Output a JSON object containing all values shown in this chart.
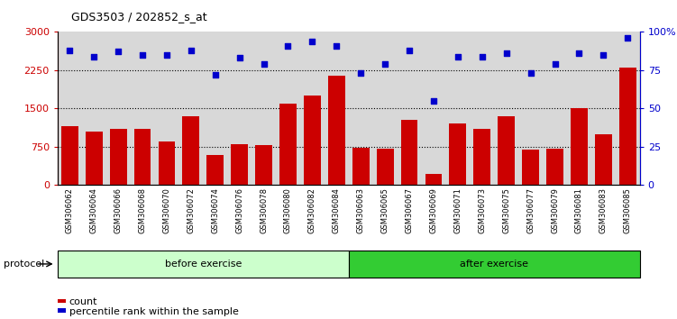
{
  "title": "GDS3503 / 202852_s_at",
  "samples": [
    "GSM306062",
    "GSM306064",
    "GSM306066",
    "GSM306068",
    "GSM306070",
    "GSM306072",
    "GSM306074",
    "GSM306076",
    "GSM306078",
    "GSM306080",
    "GSM306082",
    "GSM306084",
    "GSM306063",
    "GSM306065",
    "GSM306067",
    "GSM306069",
    "GSM306071",
    "GSM306073",
    "GSM306075",
    "GSM306077",
    "GSM306079",
    "GSM306081",
    "GSM306083",
    "GSM306085"
  ],
  "counts": [
    1150,
    1050,
    1100,
    1100,
    850,
    1350,
    590,
    800,
    780,
    1600,
    1750,
    2150,
    730,
    720,
    1280,
    220,
    1200,
    1100,
    1350,
    700,
    720,
    1500,
    1000,
    2300
  ],
  "percentiles": [
    88,
    84,
    87,
    85,
    85,
    88,
    72,
    83,
    79,
    91,
    94,
    91,
    73,
    79,
    88,
    55,
    84,
    84,
    86,
    73,
    79,
    86,
    85,
    96
  ],
  "before_count": 12,
  "after_count": 12,
  "bar_color": "#cc0000",
  "dot_color": "#0000cc",
  "before_color": "#ccffcc",
  "after_color": "#33cc33",
  "before_label": "before exercise",
  "after_label": "after exercise",
  "protocol_label": "protocol",
  "legend_count": "count",
  "legend_percentile": "percentile rank within the sample",
  "ylim_left": [
    0,
    3000
  ],
  "ylim_right": [
    0,
    100
  ],
  "yticks_left": [
    0,
    750,
    1500,
    2250,
    3000
  ],
  "yticks_right": [
    0,
    25,
    50,
    75,
    100
  ],
  "ytick_labels_right": [
    "0",
    "25",
    "50",
    "75",
    "100%"
  ],
  "grid_values": [
    750,
    1500,
    2250
  ],
  "plot_bg_color": "#d8d8d8",
  "fig_bg_color": "#ffffff"
}
